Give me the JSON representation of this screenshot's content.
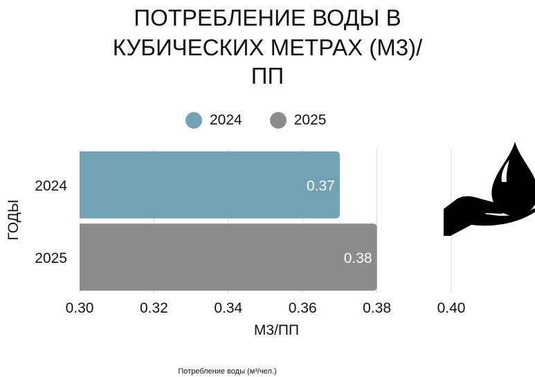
{
  "colors": {
    "series_2024": "#72a3b5",
    "series_2025": "#8c8c8c",
    "gridline": "#d9d9d9",
    "text": "#111111",
    "bar_label": "#ffffff",
    "icon": "#000000"
  },
  "icon": "water-drop-on-hand-icon",
  "chart_data": {
    "type": "bar",
    "orientation": "horizontal",
    "title_lines": [
      "ПОТРЕБЛЕНИЕ ВОДЫ В",
      "КУБИЧЕСКИХ МЕТРАХ (М3)/",
      "ПП"
    ],
    "xlabel": "М3/ПП",
    "ylabel": "ГОДЫ",
    "categories": [
      "2024",
      "2025"
    ],
    "series": [
      {
        "name": "2024",
        "category": "2024",
        "value": 0.37,
        "label": "0.37"
      },
      {
        "name": "2025",
        "category": "2025",
        "value": 0.38,
        "label": "0.38"
      }
    ],
    "legend": [
      "2024",
      "2025"
    ],
    "legend_position": "top",
    "xlim": [
      0.3,
      0.4
    ],
    "x_ticks": [
      "0.30",
      "0.32",
      "0.34",
      "0.36",
      "0.38",
      "0.40"
    ],
    "grid": true,
    "footnote": "Потребление воды (м³/чел.)"
  }
}
